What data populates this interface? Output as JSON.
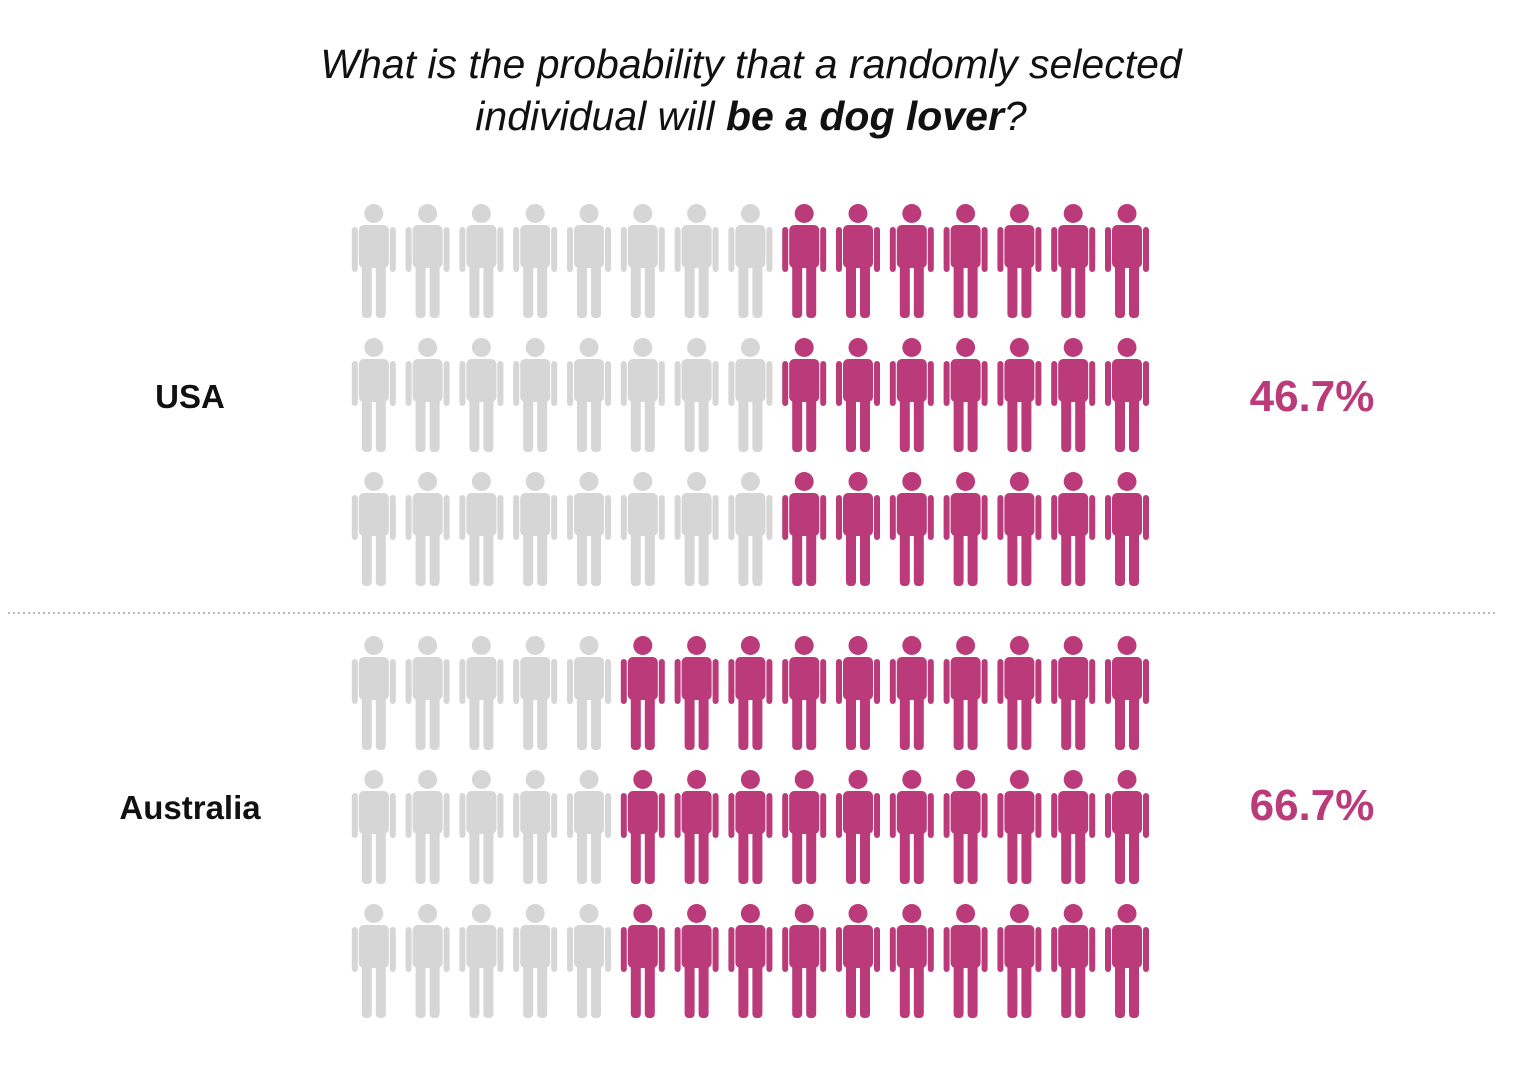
{
  "title": {
    "line1": "What is the probability that a randomly selected",
    "line2_prefix": "individual will ",
    "line2_bold": "be a dog lover",
    "line2_suffix": "?"
  },
  "colors": {
    "highlight": "#bb3b7a",
    "neutral": "#d6d6d6",
    "divider": "#a0a0a0"
  },
  "chart_data": {
    "type": "pictogram",
    "title": "What is the probability that a randomly selected individual will be a dog lover?",
    "unit_icon": "person-icon",
    "rows_per_group": 3,
    "groups": [
      {
        "name": "USA",
        "percent_label": "46.7%",
        "value": 46.7,
        "total_per_row": 15,
        "highlighted_per_row": 7,
        "total_icons": 45,
        "highlighted_icons": 21
      },
      {
        "name": "Australia",
        "percent_label": "66.7%",
        "value": 66.7,
        "total_per_row": 15,
        "highlighted_per_row": 10,
        "total_icons": 45,
        "highlighted_icons": 30
      }
    ]
  }
}
